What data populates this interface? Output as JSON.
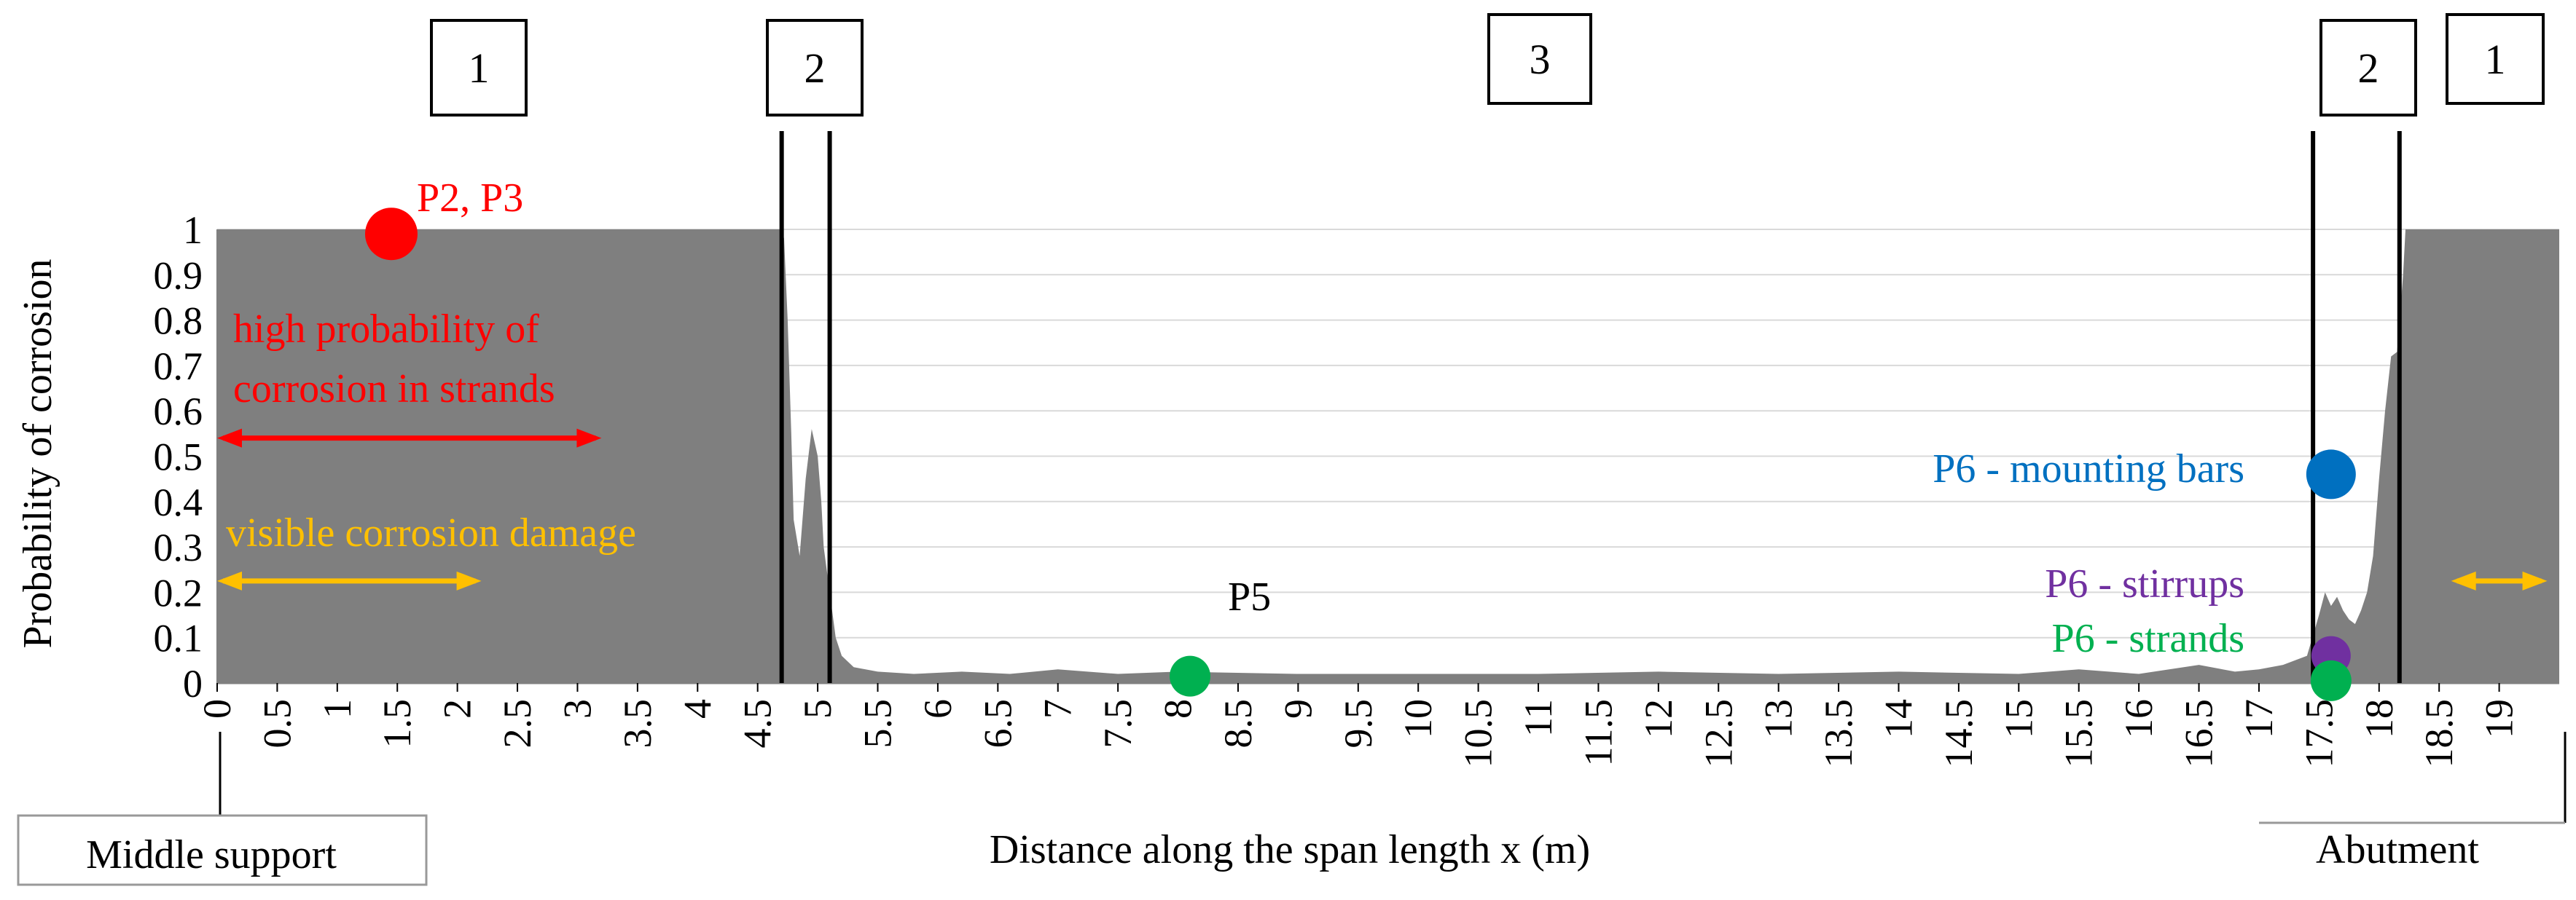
{
  "chart_data": {
    "type": "area",
    "xlabel": "Distance along the span length x (m)",
    "ylabel": "Probability of corrosion",
    "xlim": [
      0,
      19.5
    ],
    "ylim": [
      0,
      1
    ],
    "xticks": [
      0,
      0.5,
      1,
      1.5,
      2,
      2.5,
      3,
      3.5,
      4,
      4.5,
      5,
      5.5,
      6,
      6.5,
      7,
      7.5,
      8,
      8.5,
      9,
      9.5,
      10,
      10.5,
      11,
      11.5,
      12,
      12.5,
      13,
      13.5,
      14,
      14.5,
      15,
      15.5,
      16,
      16.5,
      17,
      17.5,
      18,
      18.5,
      19
    ],
    "xtick_labels": [
      "0",
      "0.5",
      "1",
      "1.5",
      "2",
      "2.5",
      "3",
      "3.5",
      "4",
      "4.5",
      "5",
      "5.5",
      "6",
      "6.5",
      "7",
      "7.5",
      "8",
      "8.5",
      "9",
      "9.5",
      "10",
      "10.5",
      "11",
      "11.5",
      "12",
      "12.5",
      "13",
      "13.5",
      "14",
      "14.5",
      "15",
      "15.5",
      "16",
      "16.5",
      "17",
      "17.5",
      "18",
      "18.5",
      "19"
    ],
    "yticks": [
      0,
      0.1,
      0.2,
      0.3,
      0.4,
      0.5,
      0.6,
      0.7,
      0.8,
      0.9,
      1
    ],
    "ytick_labels": [
      "0",
      "0.1",
      "0.2",
      "0.3",
      "0.4",
      "0.5",
      "0.6",
      "0.7",
      "0.8",
      "0.9",
      "1"
    ],
    "grid": true,
    "area_color": "#7f7f7f",
    "series": [
      {
        "x": [
          0,
          4.7,
          4.72,
          4.75,
          4.78,
          4.8,
          4.85,
          4.9,
          4.95,
          5.0,
          5.03,
          5.05,
          5.1,
          5.15,
          5.2,
          5.3,
          5.5,
          5.8,
          6.2,
          6.6,
          7.0,
          7.5,
          8.0,
          9.0,
          10.0,
          11.0,
          12.0,
          13.0,
          14.0,
          15.0,
          15.5,
          16.0,
          16.5,
          16.8,
          17.0,
          17.2,
          17.4,
          17.5,
          17.55,
          17.6,
          17.65,
          17.7,
          17.75,
          17.8,
          17.85,
          17.9,
          17.95,
          18.0,
          18.05,
          18.1,
          18.15,
          18.2,
          18.22,
          18.25,
          18.3,
          18.5,
          19.0,
          19.5
        ],
        "y": [
          1,
          1,
          0.98,
          0.8,
          0.55,
          0.36,
          0.28,
          0.45,
          0.56,
          0.5,
          0.4,
          0.3,
          0.2,
          0.1,
          0.06,
          0.035,
          0.025,
          0.02,
          0.025,
          0.02,
          0.03,
          0.02,
          0.025,
          0.02,
          0.02,
          0.02,
          0.025,
          0.02,
          0.025,
          0.02,
          0.03,
          0.02,
          0.04,
          0.025,
          0.03,
          0.04,
          0.06,
          0.15,
          0.2,
          0.17,
          0.19,
          0.16,
          0.14,
          0.13,
          0.16,
          0.2,
          0.28,
          0.45,
          0.6,
          0.72,
          0.73,
          0.9,
          1,
          1,
          1,
          1,
          1,
          1
        ]
      }
    ],
    "points": [
      {
        "label": "P2, P3",
        "x": 1.45,
        "y": 0.99,
        "color": "#ff0000"
      },
      {
        "label": "P5",
        "x": 8.1,
        "y": 0.015,
        "color": "#00b050"
      },
      {
        "label": "P6 - mounting bars",
        "x": 17.6,
        "y": 0.46,
        "color": "#0070c0"
      },
      {
        "label": "P6 - stirrups",
        "x": 17.6,
        "y": 0.06,
        "color": "#7030a0"
      },
      {
        "label": "P6 - strands",
        "x": 17.6,
        "y": 0.005,
        "color": "#00b050"
      }
    ],
    "zone_lines_x": [
      4.7,
      5.1,
      17.45,
      18.17
    ],
    "zone_boxes": [
      {
        "label": "1",
        "at": "above 1.5"
      },
      {
        "label": "2",
        "at": "above zone line 4.7"
      },
      {
        "label": "3",
        "at": "above 11"
      },
      {
        "label": "2",
        "at": "above 17.5"
      },
      {
        "label": "1",
        "at": "right end"
      }
    ],
    "annotations": [
      {
        "text": "high probability of",
        "color": "#ff0000"
      },
      {
        "text": "corrosion in strands",
        "color": "#ff0000"
      },
      {
        "text": "visible corrosion damage",
        "color": "#ffc000"
      }
    ],
    "arrows": [
      {
        "kind": "double",
        "color": "#ff0000",
        "from_x": 0,
        "to_x": 3.2,
        "y": 0.54
      },
      {
        "kind": "double",
        "color": "#ffc000",
        "from_x": 0,
        "to_x": 2.2,
        "y": 0.225
      },
      {
        "kind": "double",
        "color": "#ffc000",
        "from_x": 18.6,
        "to_x": 19.4,
        "y": 0.225
      }
    ],
    "footer_labels": {
      "left": "Middle support",
      "right": "Abutment"
    },
    "colors": {
      "red": "#ff0000",
      "orange": "#ffc000",
      "blue": "#0070c0",
      "purple": "#7030a0",
      "green": "#00b050"
    }
  }
}
